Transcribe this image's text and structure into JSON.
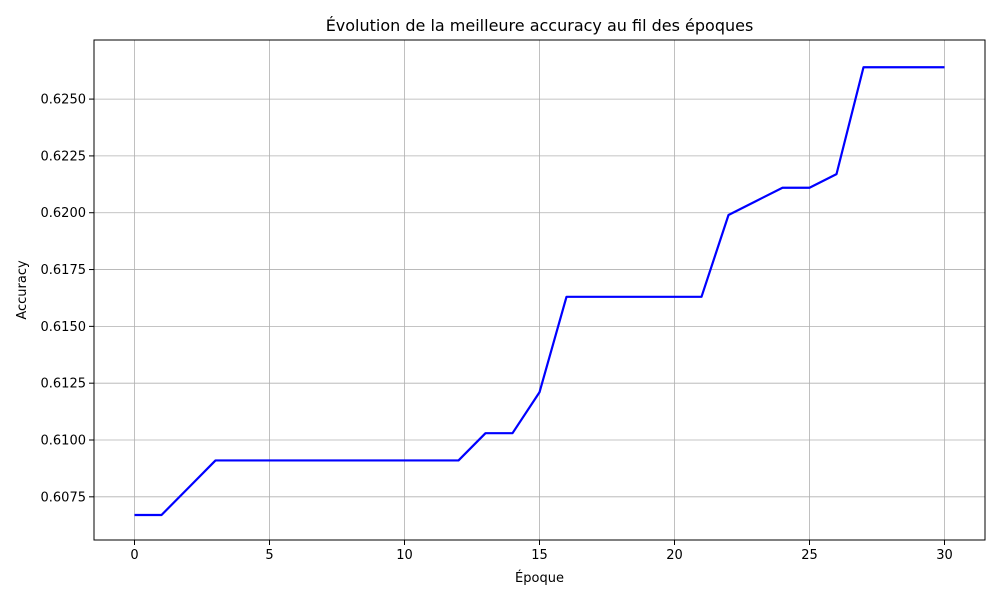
{
  "chart_data": {
    "type": "line",
    "title": "Évolution de la meilleure accuracy au fil des époques",
    "xlabel": "Époque",
    "ylabel": "Accuracy",
    "xlim": [
      -1.5,
      31.5
    ],
    "ylim": [
      0.6056,
      0.6276
    ],
    "xticks": [
      0,
      5,
      10,
      15,
      20,
      25,
      30
    ],
    "xtick_labels": [
      "0",
      "5",
      "10",
      "15",
      "20",
      "25",
      "30"
    ],
    "yticks": [
      0.6075,
      0.61,
      0.6125,
      0.615,
      0.6175,
      0.62,
      0.6225,
      0.625
    ],
    "ytick_labels": [
      "0.6075",
      "0.6100",
      "0.6125",
      "0.6150",
      "0.6175",
      "0.6200",
      "0.6225",
      "0.6250"
    ],
    "grid": true,
    "series": [
      {
        "color": "#0000ff",
        "x": [
          0,
          1,
          2,
          3,
          4,
          5,
          6,
          7,
          8,
          9,
          10,
          11,
          12,
          13,
          14,
          15,
          16,
          17,
          18,
          19,
          20,
          21,
          22,
          23,
          24,
          25,
          26,
          27,
          28,
          29,
          30
        ],
        "y": [
          0.6067,
          0.6067,
          0.6079,
          0.6091,
          0.6091,
          0.6091,
          0.6091,
          0.6091,
          0.6091,
          0.6091,
          0.6091,
          0.6091,
          0.6091,
          0.6103,
          0.6103,
          0.6121,
          0.6163,
          0.6163,
          0.6163,
          0.6163,
          0.6163,
          0.6163,
          0.6199,
          0.6205,
          0.6211,
          0.6211,
          0.6217,
          0.6264,
          0.6264,
          0.6264,
          0.6264
        ]
      }
    ]
  }
}
